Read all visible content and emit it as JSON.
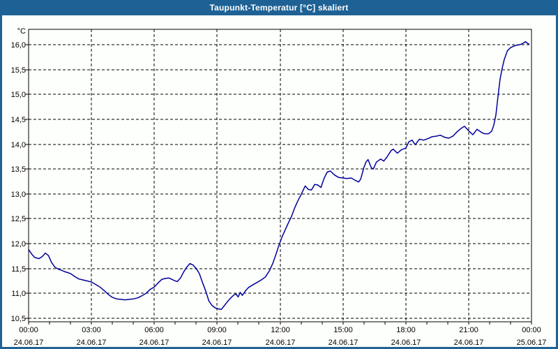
{
  "window": {
    "title": "Taupunkt-Temperatur [°C] skaliert"
  },
  "colors": {
    "frame": "#1e6295",
    "title_text": "#ffffff",
    "background": "#fdfffc",
    "line": "#000099",
    "grid": "#000000",
    "text": "#000000"
  },
  "chart_data": {
    "type": "line",
    "title": "Taupunkt-Temperatur [°C] skaliert",
    "grid": "dashed",
    "legend": "none",
    "y_axis": {
      "unit": "°C",
      "tick_values": [
        10.5,
        11.0,
        11.5,
        12.0,
        12.5,
        13.0,
        13.5,
        14.0,
        14.5,
        15.0,
        15.5,
        16.0
      ],
      "tick_labels": [
        "10,5",
        "11,0",
        "11,5",
        "12,0",
        "12,5",
        "13,0",
        "13,5",
        "14,0",
        "14,5",
        "15,0",
        "15,5",
        "16,0"
      ]
    },
    "x_axis": {
      "range_hours": [
        0,
        24
      ],
      "minor_tick_every_hours": 1,
      "major_ticks": [
        {
          "hour": 0,
          "time": "00:00",
          "date": "24.06.17"
        },
        {
          "hour": 3,
          "time": "03:00",
          "date": "24.06.17"
        },
        {
          "hour": 6,
          "time": "06:00",
          "date": "24.06.17"
        },
        {
          "hour": 9,
          "time": "09:00",
          "date": "24.06.17"
        },
        {
          "hour": 12,
          "time": "12:00",
          "date": "24.06.17"
        },
        {
          "hour": 15,
          "time": "15:00",
          "date": "24.06.17"
        },
        {
          "hour": 18,
          "time": "18:00",
          "date": "24.06.17"
        },
        {
          "hour": 21,
          "time": "21:00",
          "date": "24.06.17"
        },
        {
          "hour": 24,
          "time": "00:00",
          "date": "25.06.17"
        }
      ]
    },
    "series": [
      {
        "name": "Taupunkt-Temperatur",
        "points": [
          [
            0.0,
            11.88
          ],
          [
            0.15,
            11.79
          ],
          [
            0.3,
            11.72
          ],
          [
            0.5,
            11.7
          ],
          [
            0.65,
            11.74
          ],
          [
            0.8,
            11.81
          ],
          [
            0.95,
            11.76
          ],
          [
            1.1,
            11.62
          ],
          [
            1.25,
            11.53
          ],
          [
            1.4,
            11.49
          ],
          [
            1.55,
            11.47
          ],
          [
            1.7,
            11.44
          ],
          [
            1.85,
            11.42
          ],
          [
            2.0,
            11.4
          ],
          [
            2.2,
            11.34
          ],
          [
            2.4,
            11.29
          ],
          [
            2.6,
            11.27
          ],
          [
            2.8,
            11.25
          ],
          [
            3.0,
            11.23
          ],
          [
            3.2,
            11.18
          ],
          [
            3.4,
            11.13
          ],
          [
            3.6,
            11.06
          ],
          [
            3.8,
            10.98
          ],
          [
            4.0,
            10.92
          ],
          [
            4.2,
            10.89
          ],
          [
            4.4,
            10.88
          ],
          [
            4.6,
            10.87
          ],
          [
            4.8,
            10.88
          ],
          [
            5.0,
            10.89
          ],
          [
            5.2,
            10.91
          ],
          [
            5.4,
            10.95
          ],
          [
            5.6,
            11.0
          ],
          [
            5.8,
            11.08
          ],
          [
            6.0,
            11.13
          ],
          [
            6.2,
            11.22
          ],
          [
            6.35,
            11.28
          ],
          [
            6.5,
            11.3
          ],
          [
            6.7,
            11.31
          ],
          [
            6.85,
            11.28
          ],
          [
            7.0,
            11.25
          ],
          [
            7.1,
            11.24
          ],
          [
            7.25,
            11.31
          ],
          [
            7.4,
            11.43
          ],
          [
            7.55,
            11.53
          ],
          [
            7.7,
            11.6
          ],
          [
            7.85,
            11.57
          ],
          [
            8.0,
            11.5
          ],
          [
            8.15,
            11.4
          ],
          [
            8.3,
            11.22
          ],
          [
            8.45,
            11.05
          ],
          [
            8.6,
            10.85
          ],
          [
            8.75,
            10.76
          ],
          [
            8.9,
            10.71
          ],
          [
            9.05,
            10.69
          ],
          [
            9.2,
            10.68
          ],
          [
            9.35,
            10.76
          ],
          [
            9.5,
            10.84
          ],
          [
            9.65,
            10.91
          ],
          [
            9.8,
            10.97
          ],
          [
            9.9,
            10.99
          ],
          [
            10.0,
            10.93
          ],
          [
            10.1,
            11.02
          ],
          [
            10.2,
            10.96
          ],
          [
            10.35,
            11.05
          ],
          [
            10.5,
            11.12
          ],
          [
            10.7,
            11.17
          ],
          [
            10.9,
            11.22
          ],
          [
            11.1,
            11.27
          ],
          [
            11.3,
            11.33
          ],
          [
            11.5,
            11.46
          ],
          [
            11.65,
            11.6
          ],
          [
            11.8,
            11.78
          ],
          [
            11.95,
            11.97
          ],
          [
            12.1,
            12.14
          ],
          [
            12.25,
            12.28
          ],
          [
            12.4,
            12.42
          ],
          [
            12.55,
            12.55
          ],
          [
            12.7,
            12.72
          ],
          [
            12.85,
            12.86
          ],
          [
            13.0,
            12.98
          ],
          [
            13.1,
            13.07
          ],
          [
            13.2,
            13.16
          ],
          [
            13.35,
            13.09
          ],
          [
            13.5,
            13.08
          ],
          [
            13.65,
            13.19
          ],
          [
            13.8,
            13.18
          ],
          [
            13.95,
            13.13
          ],
          [
            14.1,
            13.31
          ],
          [
            14.25,
            13.44
          ],
          [
            14.4,
            13.46
          ],
          [
            14.6,
            13.38
          ],
          [
            14.8,
            13.33
          ],
          [
            15.0,
            13.32
          ],
          [
            15.2,
            13.31
          ],
          [
            15.4,
            13.32
          ],
          [
            15.6,
            13.27
          ],
          [
            15.75,
            13.24
          ],
          [
            15.85,
            13.3
          ],
          [
            16.0,
            13.53
          ],
          [
            16.1,
            13.64
          ],
          [
            16.2,
            13.69
          ],
          [
            16.35,
            13.53
          ],
          [
            16.45,
            13.5
          ],
          [
            16.6,
            13.64
          ],
          [
            16.8,
            13.7
          ],
          [
            16.95,
            13.66
          ],
          [
            17.1,
            13.74
          ],
          [
            17.3,
            13.87
          ],
          [
            17.4,
            13.9
          ],
          [
            17.6,
            13.82
          ],
          [
            17.8,
            13.89
          ],
          [
            18.0,
            13.92
          ],
          [
            18.15,
            14.05
          ],
          [
            18.3,
            14.08
          ],
          [
            18.45,
            13.99
          ],
          [
            18.65,
            14.1
          ],
          [
            18.85,
            14.08
          ],
          [
            19.05,
            14.11
          ],
          [
            19.25,
            14.15
          ],
          [
            19.45,
            14.16
          ],
          [
            19.65,
            14.18
          ],
          [
            19.85,
            14.14
          ],
          [
            20.05,
            14.12
          ],
          [
            20.25,
            14.16
          ],
          [
            20.45,
            14.25
          ],
          [
            20.65,
            14.32
          ],
          [
            20.8,
            14.36
          ],
          [
            21.0,
            14.27
          ],
          [
            21.2,
            14.19
          ],
          [
            21.4,
            14.3
          ],
          [
            21.6,
            14.24
          ],
          [
            21.75,
            14.21
          ],
          [
            21.95,
            14.21
          ],
          [
            22.1,
            14.26
          ],
          [
            22.2,
            14.38
          ],
          [
            22.3,
            14.58
          ],
          [
            22.4,
            14.95
          ],
          [
            22.5,
            15.3
          ],
          [
            22.6,
            15.52
          ],
          [
            22.7,
            15.7
          ],
          [
            22.85,
            15.88
          ],
          [
            23.0,
            15.94
          ],
          [
            23.15,
            15.97
          ],
          [
            23.3,
            15.99
          ],
          [
            23.45,
            16.0
          ],
          [
            23.6,
            16.03
          ],
          [
            23.72,
            16.06
          ],
          [
            23.8,
            16.03
          ],
          [
            23.88,
            16.01
          ]
        ]
      }
    ]
  }
}
